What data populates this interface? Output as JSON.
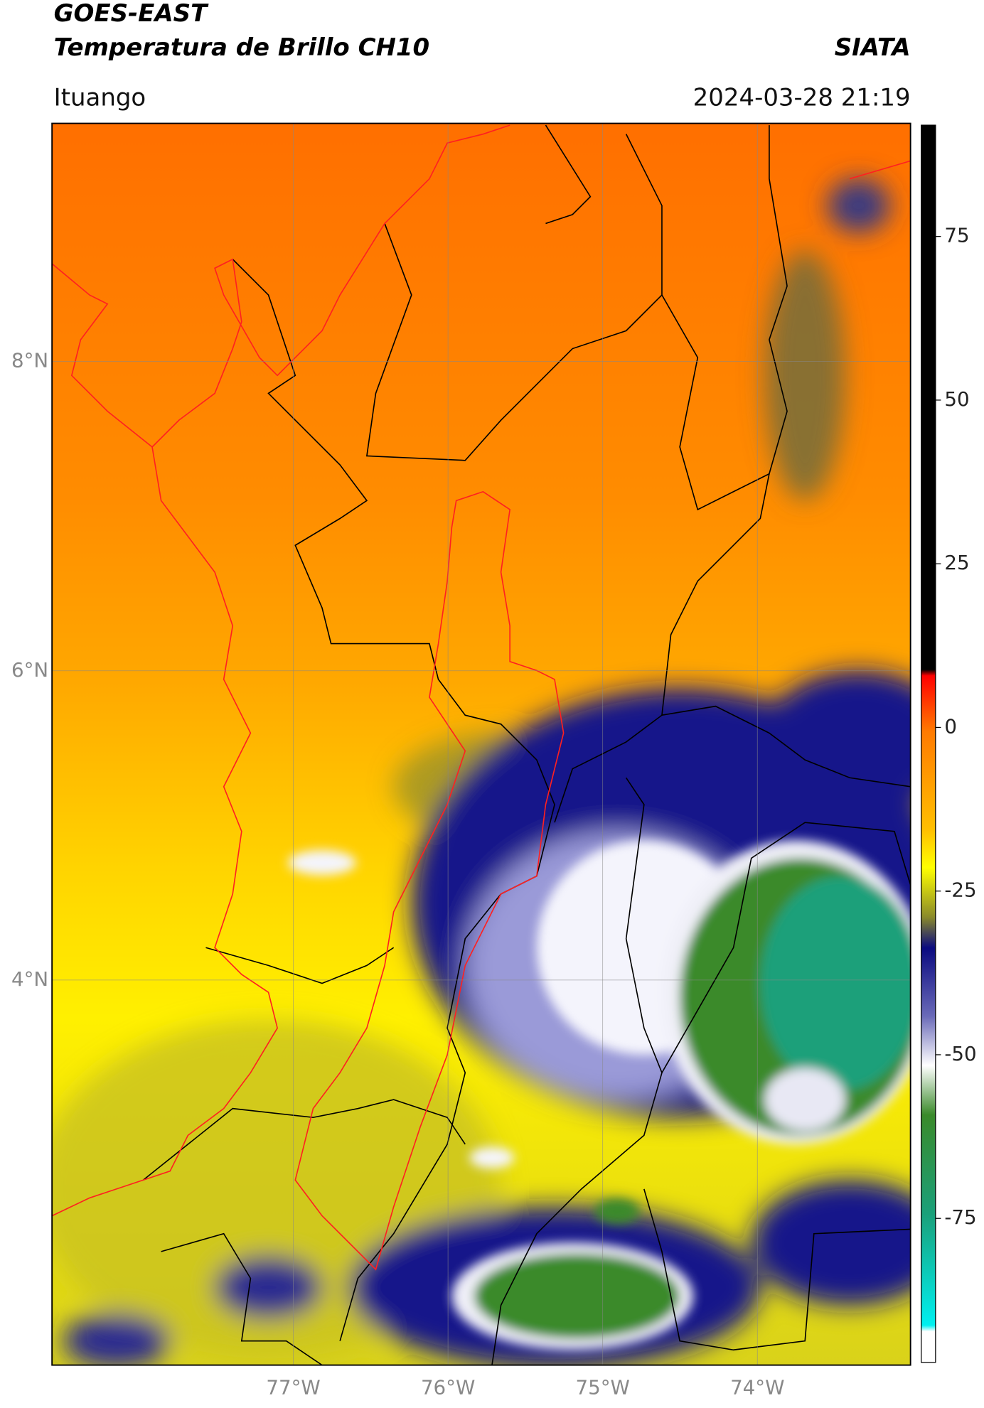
{
  "header": {
    "title": "GOES-EAST",
    "subtitle": "Temperatura de Brillo CH10",
    "source": "SIATA",
    "location": "Ituango",
    "timestamp": "2024-03-28 21:19"
  },
  "map": {
    "xlim": [
      -78.56,
      -73.01
    ],
    "ylim": [
      1.51,
      9.54
    ],
    "xticks": [
      {
        "value": -77,
        "label": "77°W"
      },
      {
        "value": -76,
        "label": "76°W"
      },
      {
        "value": -75,
        "label": "75°W"
      },
      {
        "value": -74,
        "label": "74°W"
      }
    ],
    "yticks": [
      {
        "value": 8,
        "label": "8°N"
      },
      {
        "value": 6,
        "label": "6°N"
      },
      {
        "value": 4,
        "label": "4°N"
      }
    ]
  },
  "colorbar": {
    "lim": [
      -97,
      92
    ],
    "ticks": [
      75,
      50,
      25,
      0,
      -25,
      -50,
      -75
    ]
  }
}
